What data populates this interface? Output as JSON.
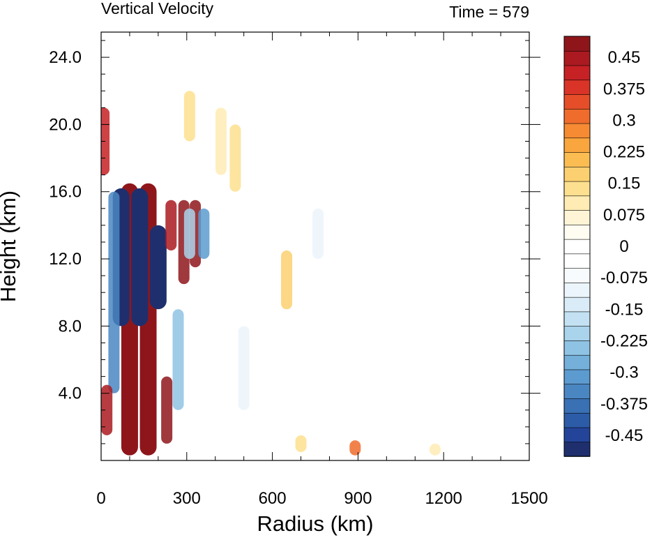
{
  "chart_data": {
    "type": "heatmap",
    "title": "Vertical Velocity",
    "subtitle": "Time = 579",
    "xlabel": "Radius (km)",
    "ylabel": "Height (km)",
    "xlim": [
      0,
      1500
    ],
    "ylim": [
      0,
      25.5
    ],
    "xticks": [
      0,
      300,
      600,
      900,
      1200,
      1500
    ],
    "xtick_labels": [
      "0",
      "300",
      "600",
      "900",
      "1200",
      "1500"
    ],
    "yticks": [
      4,
      8,
      12,
      16,
      20,
      24
    ],
    "ytick_labels": [
      "4.0",
      "8.0",
      "12.0",
      "16.0",
      "20.0",
      "24.0"
    ],
    "grid": false,
    "colorbar": {
      "levels_min": -0.5,
      "levels_max": 0.5,
      "interval": 0.025,
      "tick_values": [
        0.45,
        0.375,
        0.3,
        0.225,
        0.15,
        0.075,
        0,
        -0.075,
        -0.15,
        -0.225,
        -0.3,
        -0.375,
        -0.45
      ],
      "tick_labels": [
        "0.45",
        "0.375",
        "0.3",
        "0.225",
        "0.15",
        "0.075",
        "0",
        "-0.075",
        "-0.15",
        "-0.225",
        "-0.3",
        "-0.375",
        "-0.45"
      ],
      "colors_low_to_high": [
        "#1f2f6e",
        "#24449a",
        "#2c5ca8",
        "#3a70b4",
        "#4a86c2",
        "#5c9bcf",
        "#74b0da",
        "#8fc3e4",
        "#aad3ec",
        "#c3e1f2",
        "#d9ecf7",
        "#ebf5fb",
        "#f7fbfe",
        "#ffffff",
        "#ffffff",
        "#fffdf2",
        "#fff5d6",
        "#ffebb4",
        "#fde08f",
        "#fcd070",
        "#fbbd52",
        "#f9a63e",
        "#f68b33",
        "#f06c2c",
        "#e54e29",
        "#d93427",
        "#c62125",
        "#aa1a20",
        "#8e161b"
      ]
    },
    "features": [
      {
        "r": 100,
        "z0": 0.3,
        "z1": 16.5,
        "w": 1.0
      },
      {
        "r": 165,
        "z0": 0.3,
        "z1": 16.5,
        "w": 1.0
      },
      {
        "r": 70,
        "z0": 8,
        "z1": 16.2,
        "w": -1.0
      },
      {
        "r": 135,
        "z0": 8,
        "z1": 16.2,
        "w": -1.0
      },
      {
        "r": 200,
        "z0": 9,
        "z1": 14,
        "w": -1.0
      },
      {
        "r": 45,
        "z0": 4,
        "z1": 16,
        "w": -0.35
      },
      {
        "r": 20,
        "z0": 1.5,
        "z1": 4.5,
        "w": 0.45
      },
      {
        "r": 10,
        "z0": 17,
        "z1": 21,
        "w": 0.4
      },
      {
        "r": 230,
        "z0": 1,
        "z1": 5,
        "w": 0.5
      },
      {
        "r": 245,
        "z0": 12.5,
        "z1": 15.5,
        "w": 0.45
      },
      {
        "r": 290,
        "z0": 10.5,
        "z1": 15.5,
        "w": 0.6
      },
      {
        "r": 330,
        "z0": 11.5,
        "z1": 15.5,
        "w": 0.5
      },
      {
        "r": 270,
        "z0": 3,
        "z1": 9,
        "w": -0.25
      },
      {
        "r": 310,
        "z0": 12,
        "z1": 15,
        "w": -0.2
      },
      {
        "r": 360,
        "z0": 12,
        "z1": 15,
        "w": -0.3
      },
      {
        "r": 310,
        "z0": 19,
        "z1": 22,
        "w": 0.15
      },
      {
        "r": 420,
        "z0": 17,
        "z1": 21,
        "w": 0.12
      },
      {
        "r": 470,
        "z0": 16,
        "z1": 20,
        "w": 0.15
      },
      {
        "r": 650,
        "z0": 9,
        "z1": 12.5,
        "w": 0.18
      },
      {
        "r": 500,
        "z0": 3,
        "z1": 8,
        "w": -0.1
      },
      {
        "r": 760,
        "z0": 12,
        "z1": 15,
        "w": -0.1
      },
      {
        "r": 890,
        "z0": 0.3,
        "z1": 1.2,
        "w": 0.3
      },
      {
        "r": 700,
        "z0": 0.5,
        "z1": 1.5,
        "w": 0.15
      },
      {
        "r": 1170,
        "z0": 0.3,
        "z1": 1.0,
        "w": 0.12
      }
    ]
  }
}
